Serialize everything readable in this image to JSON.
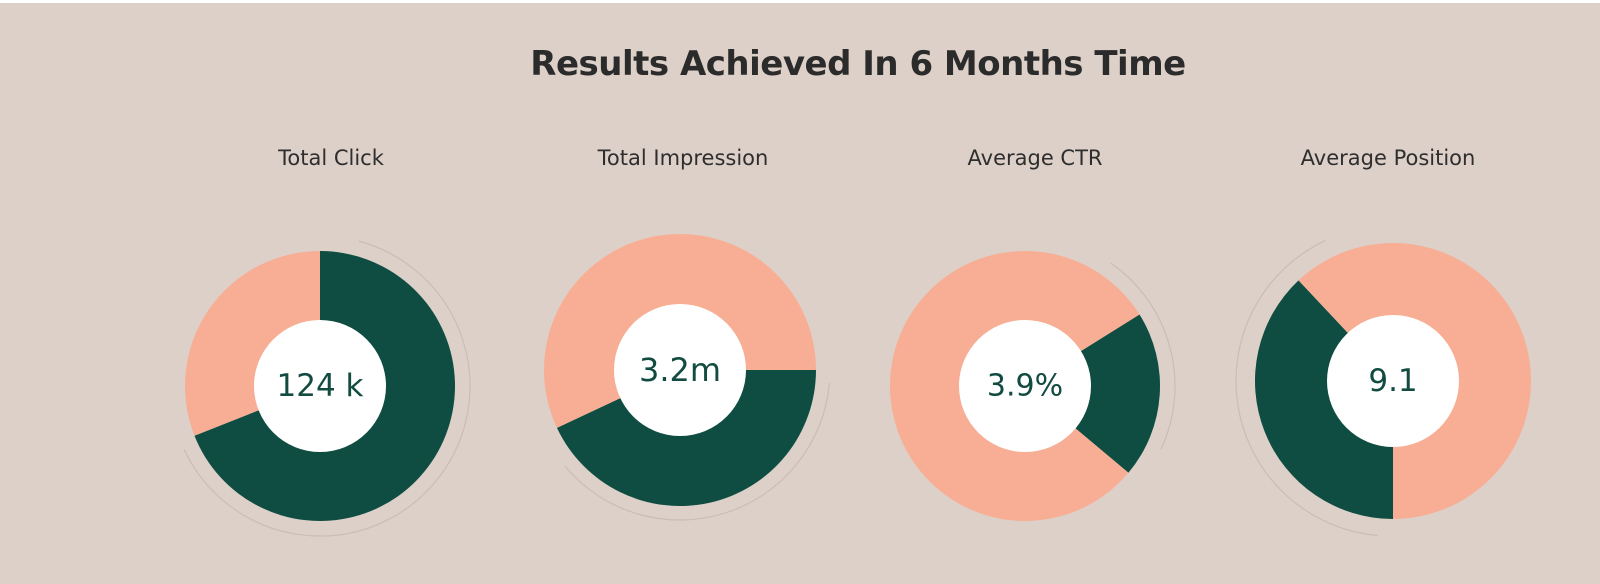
{
  "page": {
    "title": "Results Achieved In 6 Months Time"
  },
  "colors": {
    "background": "#ddd0c8",
    "dark_green": "#0f4c41",
    "peach": "#f7ae95",
    "hole": "#ffffff",
    "value_text": "#124b40",
    "label_text": "#2e2e2e"
  },
  "chart_data": [
    {
      "type": "pie",
      "title": "Total Click",
      "center_value": "124 k",
      "slices": [
        {
          "color": "dark_green",
          "fraction": 0.69
        },
        {
          "color": "peach",
          "fraction": 0.31
        }
      ]
    },
    {
      "type": "pie",
      "title": "Total Impression",
      "center_value": "3.2m",
      "slices": [
        {
          "color": "dark_green",
          "fraction": 0.43
        },
        {
          "color": "peach",
          "fraction": 0.57
        }
      ]
    },
    {
      "type": "pie",
      "title": "Average CTR",
      "center_value": "3.9%",
      "slices": [
        {
          "color": "dark_green",
          "fraction": 0.2
        },
        {
          "color": "peach",
          "fraction": 0.8
        }
      ]
    },
    {
      "type": "pie",
      "title": "Average Position",
      "center_value": "9.1",
      "slices": [
        {
          "color": "dark_green",
          "fraction": 0.38
        },
        {
          "color": "peach",
          "fraction": 0.62
        }
      ]
    }
  ]
}
